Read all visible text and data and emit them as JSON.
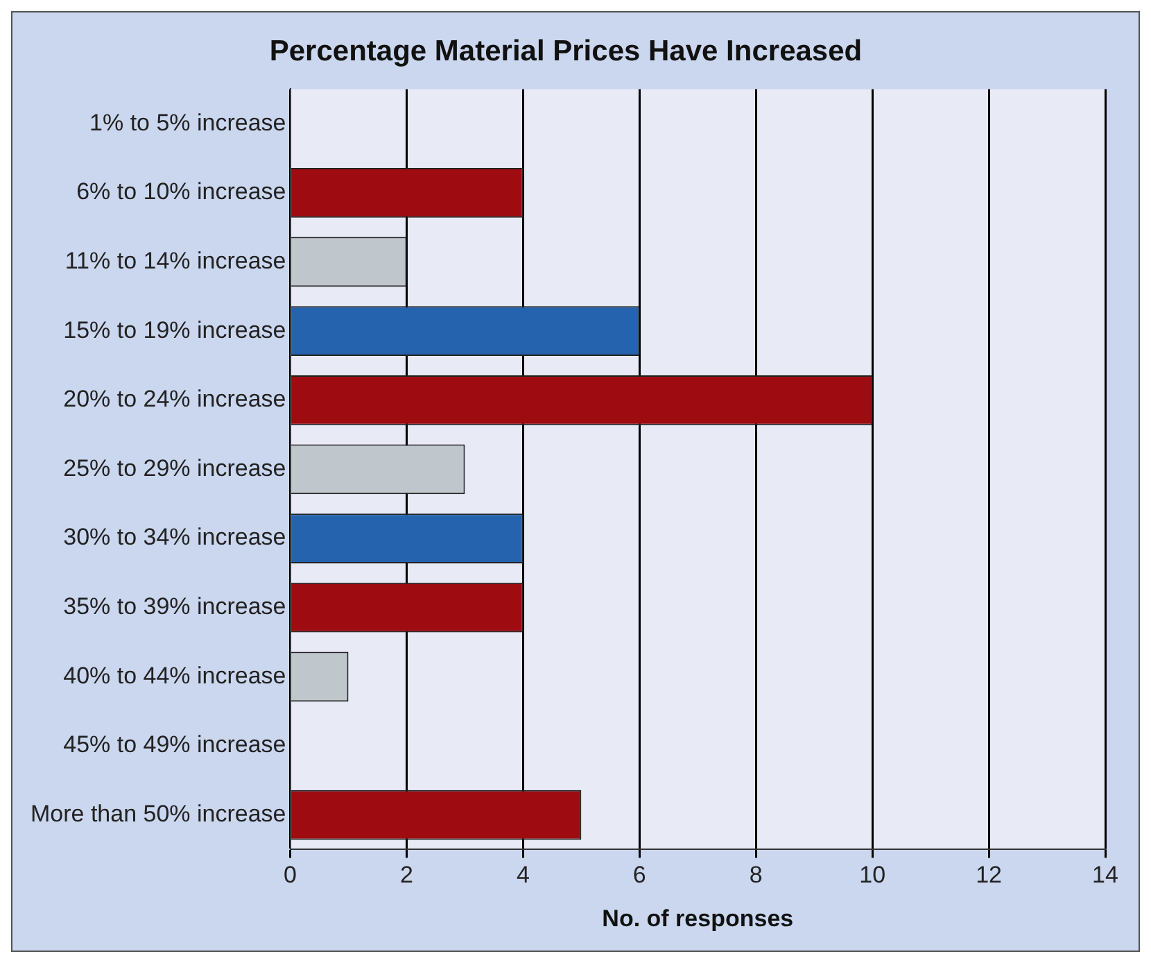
{
  "chart_data": {
    "type": "bar",
    "orientation": "horizontal",
    "title": "Percentage Material Prices Have Increased",
    "xlabel": "No. of responses",
    "categories": [
      "1% to 5% increase",
      "6% to 10% increase",
      "11% to 14% increase",
      "15% to 19% increase",
      "20% to 24% increase",
      "25% to 29% increase",
      "30% to 34% increase",
      "35% to 39% increase",
      "40% to 44% increase",
      "45% to 49% increase",
      "More than 50% increase"
    ],
    "values": [
      0,
      4,
      2,
      6,
      10,
      3,
      4,
      4,
      1,
      0,
      5
    ],
    "colors": [
      "#9e0b10",
      "#9e0b10",
      "#bfc6cc",
      "#2563ae",
      "#9e0b10",
      "#bfc6cc",
      "#2563ae",
      "#9e0b10",
      "#bfc6cc",
      "#2563ae",
      "#9e0b10"
    ],
    "xlim": [
      0,
      14
    ],
    "xticks": [
      0,
      2,
      4,
      6,
      8,
      10,
      12,
      14
    ],
    "grid": "x",
    "legend": false
  }
}
